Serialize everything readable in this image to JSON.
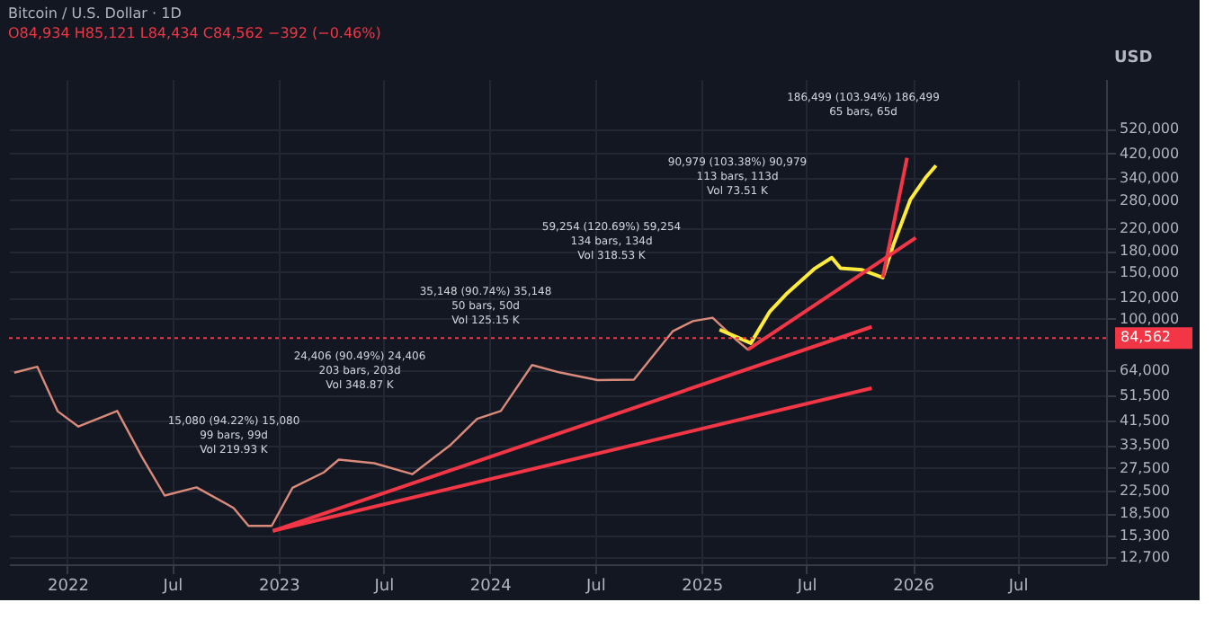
{
  "chart_data": {
    "type": "line",
    "title": "Bitcoin / U.S. Dollar · 1D",
    "subtitle": "O84,934 H85,121 L84,434 C84,562 −392 (−0.46%)",
    "ylabel": "USD",
    "log": "y",
    "grid": true,
    "line_style": "solid",
    "marker": "none",
    "xlim": [
      "2021-09-22",
      "2026-12-01"
    ],
    "ylim": [
      11900,
      800000
    ],
    "xticks": [
      {
        "value": "2022-01-01",
        "label": "2022"
      },
      {
        "value": "2022-07-01",
        "label": "Jul"
      },
      {
        "value": "2023-01-01",
        "label": "2023"
      },
      {
        "value": "2023-07-01",
        "label": "Jul"
      },
      {
        "value": "2024-01-01",
        "label": "2024"
      },
      {
        "value": "2024-07-01",
        "label": "Jul"
      },
      {
        "value": "2025-01-01",
        "label": "2025"
      },
      {
        "value": "2025-07-01",
        "label": "Jul"
      },
      {
        "value": "2026-01-01",
        "label": "2026"
      },
      {
        "value": "2026-07-01",
        "label": "Jul"
      }
    ],
    "yticks": [
      {
        "value": 12700,
        "label": "12,700"
      },
      {
        "value": 15300,
        "label": "15,300"
      },
      {
        "value": 18500,
        "label": "18,500"
      },
      {
        "value": 22500,
        "label": "22,500"
      },
      {
        "value": 27500,
        "label": "27,500"
      },
      {
        "value": 33500,
        "label": "33,500"
      },
      {
        "value": 41500,
        "label": "41,500"
      },
      {
        "value": 51500,
        "label": "51,500"
      },
      {
        "value": 64000,
        "label": "64,000"
      },
      {
        "value": 100000,
        "label": "100,000"
      },
      {
        "value": 120000,
        "label": "120,000"
      },
      {
        "value": 150000,
        "label": "150,000"
      },
      {
        "value": 180000,
        "label": "180,000"
      },
      {
        "value": 220000,
        "label": "220,000"
      },
      {
        "value": 280000,
        "label": "280,000"
      },
      {
        "value": 340000,
        "label": "340,000"
      },
      {
        "value": 420000,
        "label": "420,000"
      },
      {
        "value": 520000,
        "label": "520,000"
      }
    ],
    "series": [
      {
        "color": "#d98a7a",
        "x": [
          "2021-10-01",
          "2021-11-10",
          "2021-12-15",
          "2022-01-20",
          "2022-03-28",
          "2022-05-10",
          "2022-06-18",
          "2022-08-12",
          "2022-10-15",
          "2022-11-10",
          "2022-12-20",
          "2023-01-25",
          "2023-03-20",
          "2023-04-15",
          "2023-06-15",
          "2023-08-20",
          "2023-10-25",
          "2023-12-10",
          "2024-01-20",
          "2024-03-14",
          "2024-05-01",
          "2024-07-05",
          "2024-09-06",
          "2024-11-12",
          "2024-12-17",
          "2025-01-20",
          "2025-02-28",
          "2025-03-22",
          "2025-04-18"
        ],
        "values": [
          62700,
          66000,
          44900,
          39300,
          45000,
          30100,
          21600,
          23200,
          19400,
          16600,
          16600,
          23100,
          26400,
          29500,
          28600,
          26000,
          33500,
          42000,
          45000,
          67000,
          62800,
          58800,
          59000,
          89800,
          98000,
          101000,
          84000,
          76600,
          84562
        ]
      },
      {
        "color": "#ffeb3b",
        "x": [
          "2025-02-01",
          "2025-03-27",
          "2025-04-29",
          "2025-05-29",
          "2025-07-16",
          "2025-08-14",
          "2025-08-29",
          "2025-10-05",
          "2025-11-10",
          "2025-11-28",
          "2025-12-28",
          "2026-01-23",
          "2026-02-10"
        ],
        "values": [
          91000,
          81000,
          106700,
          125000,
          155000,
          170000,
          155000,
          153000,
          143000,
          189000,
          282000,
          340000,
          378000
        ]
      },
      {
        "color": "#f23645",
        "x": [
          "2025-03-22",
          "2026-01-06"
        ],
        "values": [
          76600,
          202000
        ]
      },
      {
        "color": "#f23645",
        "x": [
          "2025-11-10",
          "2025-12-22"
        ],
        "values": [
          143000,
          404000
        ]
      },
      {
        "color": "#f23645",
        "x": [
          "2022-12-22",
          "2025-10-22"
        ],
        "values": [
          15900,
          93300
        ]
      },
      {
        "color": "#f23645",
        "x": [
          "2022-12-22",
          "2025-10-22"
        ],
        "values": [
          15900,
          54800
        ]
      }
    ],
    "ref_lines": [
      {
        "axis": "y",
        "value": 84562,
        "label": "84,562",
        "color": "#f23645",
        "line_style": "dotted"
      }
    ],
    "annotations": [
      "15,080 (94.22%) 15,080\n99 bars, 99d\nVol 219.93 K",
      "24,406 (90.49%) 24,406\n203 bars, 203d\nVol 348.87 K",
      "35,148 (90.74%) 35,148\n50 bars, 50d\nVol 125.15 K",
      "59,254 (120.69%) 59,254\n134 bars, 134d\nVol 318.53 K",
      "90,979 (103.38%) 90,979\n113 bars, 113d\nVol 73.51 K",
      "186,499 (103.94%) 186,499\n65 bars, 65d"
    ]
  }
}
